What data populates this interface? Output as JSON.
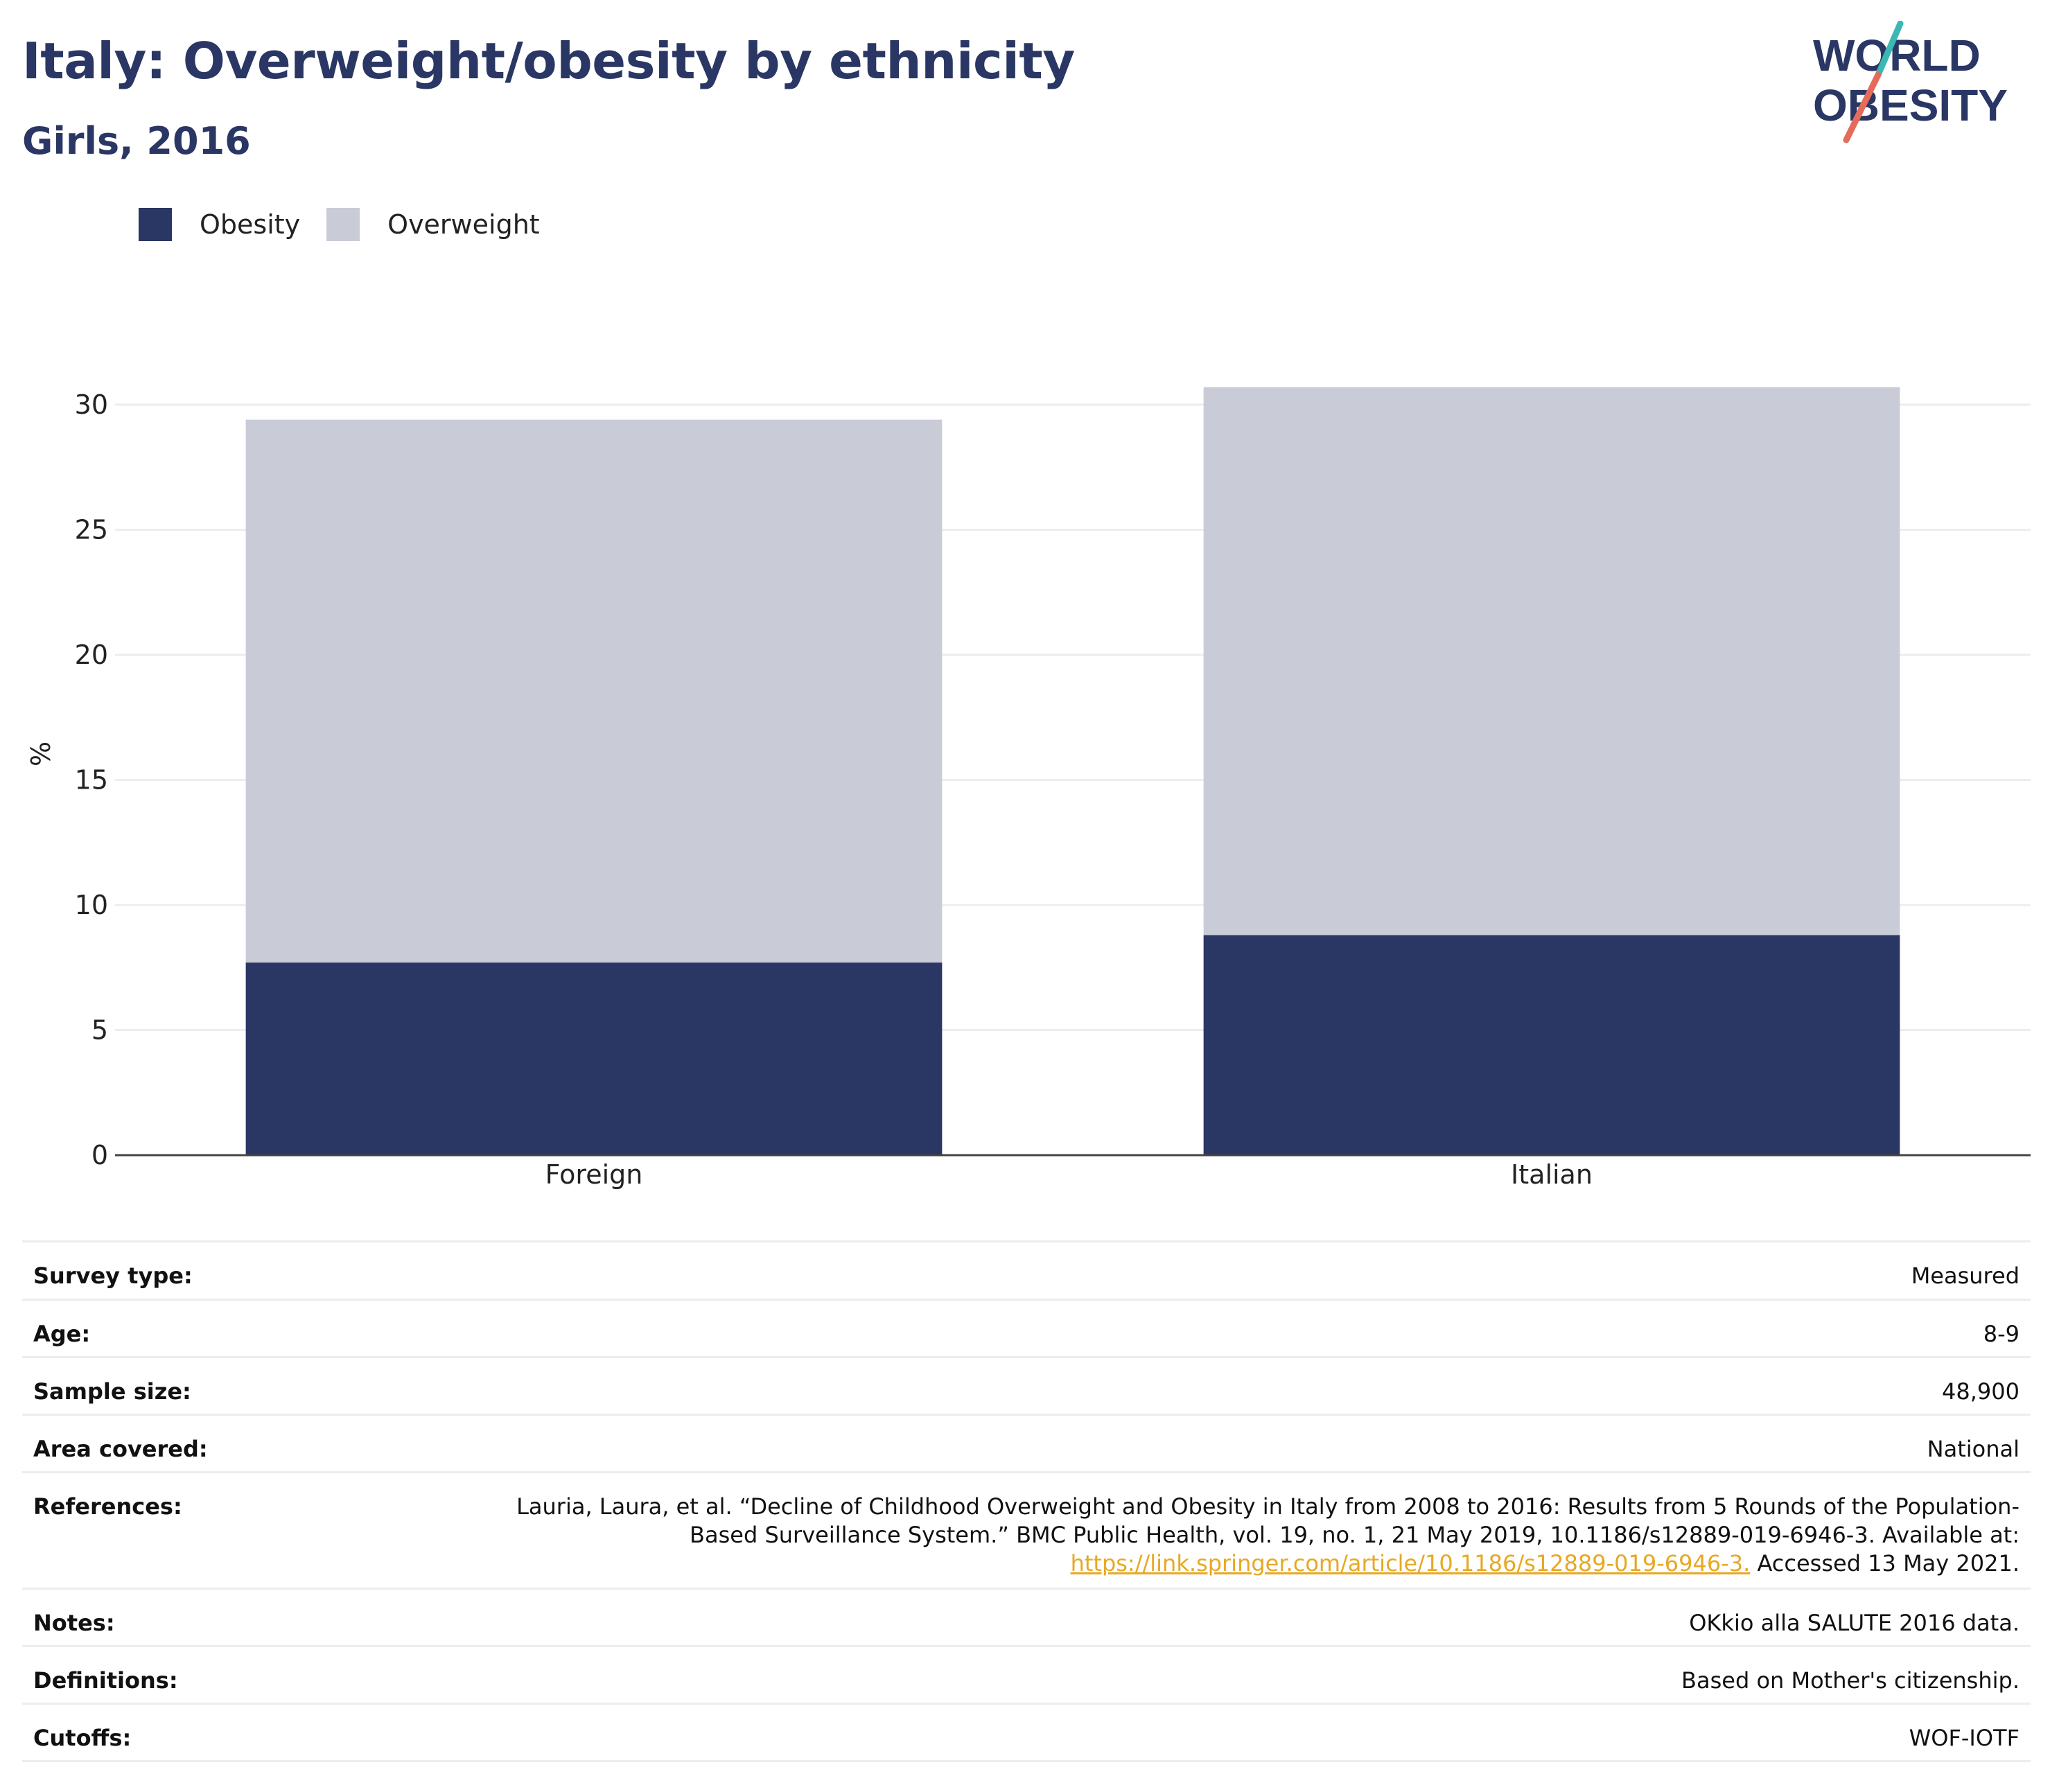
{
  "header": {
    "title": "Italy: Overweight/obesity by ethnicity",
    "subtitle": "Girls, 2016"
  },
  "logo": {
    "line1": "WORLD",
    "line2": "OBESITY",
    "text_color": "#2a3663",
    "slash_teal": "#3bb8b4",
    "slash_red": "#e56b5a"
  },
  "legend": [
    {
      "label": "Obesity",
      "color": "#2a3663"
    },
    {
      "label": "Overweight",
      "color": "#c9cbd7"
    }
  ],
  "chart_data": {
    "type": "bar",
    "stacked": true,
    "categories": [
      "Foreign",
      "Italian"
    ],
    "series": [
      {
        "name": "Obesity",
        "color": "#2a3663",
        "values": [
          7.7,
          8.8
        ]
      },
      {
        "name": "Overweight",
        "color": "#c9cbd7",
        "values": [
          21.7,
          21.9
        ]
      }
    ],
    "ylabel": "%",
    "xlabel": "",
    "ylim": [
      0,
      30
    ],
    "yticks": [
      0,
      5,
      10,
      15,
      20,
      25,
      30
    ],
    "grid": true,
    "legend_position": "top-left"
  },
  "info_table": {
    "rows": [
      {
        "key": "Survey type:",
        "value": "Measured"
      },
      {
        "key": "Age:",
        "value": "8-9"
      },
      {
        "key": "Sample size:",
        "value": "48,900"
      },
      {
        "key": "Area covered:",
        "value": "National"
      },
      {
        "key": "References:",
        "value_lines": [
          "Lauria, Laura, et al. “Decline of Childhood Overweight and Obesity in Italy from 2008 to 2016: Results from 5 Rounds of the Population-",
          "Based Surveillance System.” BMC Public Health, vol. 19, no. 1, 21 May 2019, 10.1186/s12889-019-6946-3. Available at:"
        ],
        "link": "https://link.springer.com/article/10.1186/s12889-019-6946-3.",
        "after_link": " Accessed 13 May 2021."
      },
      {
        "key": "Notes:",
        "value": "OKkio alla SALUTE 2016 data."
      },
      {
        "key": "Definitions:",
        "value": "Based on Mother's citizenship."
      },
      {
        "key": "Cutoffs:",
        "value": "WOF-IOTF"
      }
    ]
  }
}
